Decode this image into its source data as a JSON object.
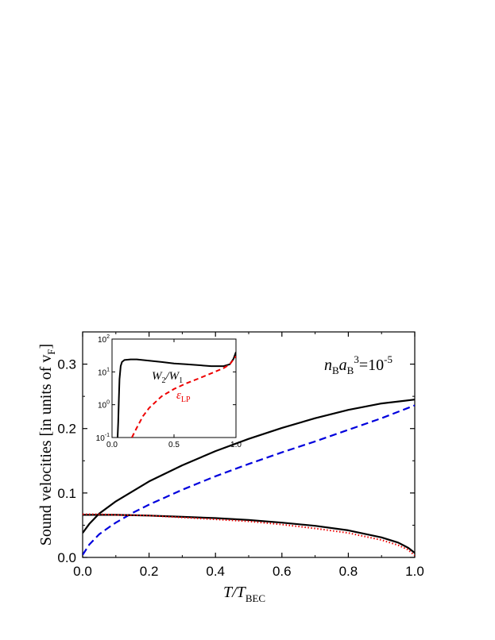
{
  "chart_data": [
    {
      "type": "line",
      "xlabel": "T/T",
      "xlabel_sub": "BEC",
      "ylabel": "Sound velocities [in units of v",
      "ylabel_sub": "F",
      "ylabel_end": "]",
      "xlim": [
        0,
        1
      ],
      "ylim": [
        0,
        0.35
      ],
      "xticks": [
        "0.0",
        "0.2",
        "0.4",
        "0.6",
        "0.8",
        "1.0"
      ],
      "yticks": [
        "0.0",
        "0.1",
        "0.2",
        "0.3"
      ],
      "annotation": {
        "n": "n",
        "n_sub": "B",
        "a": "a",
        "a_sub": "B",
        "exp": "3",
        "rhs": "=10",
        "rhs_exp": "-5"
      },
      "series": [
        {
          "style": "solid",
          "color": "#000000",
          "x": [
            0,
            0.02,
            0.05,
            0.1,
            0.2,
            0.3,
            0.4,
            0.5,
            0.6,
            0.7,
            0.8,
            0.9,
            1.0
          ],
          "y": [
            0.038,
            0.052,
            0.068,
            0.087,
            0.118,
            0.143,
            0.165,
            0.184,
            0.201,
            0.216,
            0.229,
            0.239,
            0.245
          ]
        },
        {
          "style": "dashed",
          "color": "#0000dd",
          "x": [
            0,
            0.02,
            0.05,
            0.08,
            0.1,
            0.15,
            0.2,
            0.3,
            0.4,
            0.5,
            0.6,
            0.7,
            0.8,
            0.9,
            1.0
          ],
          "y": [
            0.004,
            0.02,
            0.036,
            0.047,
            0.054,
            0.069,
            0.082,
            0.105,
            0.126,
            0.145,
            0.163,
            0.18,
            0.198,
            0.216,
            0.236
          ]
        },
        {
          "style": "solid",
          "color": "#000000",
          "x": [
            0,
            0.03,
            0.05,
            0.08,
            0.1,
            0.2,
            0.3,
            0.4,
            0.5,
            0.6,
            0.7,
            0.8,
            0.9,
            0.95,
            0.98,
            1.0
          ],
          "y": [
            0.066,
            0.066,
            0.066,
            0.066,
            0.066,
            0.065,
            0.063,
            0.061,
            0.058,
            0.054,
            0.049,
            0.042,
            0.031,
            0.023,
            0.015,
            0.007
          ]
        },
        {
          "style": "dotted",
          "color": "#ee0000",
          "x": [
            0,
            0.05,
            0.1,
            0.2,
            0.3,
            0.4,
            0.5,
            0.6,
            0.7,
            0.8,
            0.9,
            0.95,
            0.98,
            1.0
          ],
          "y": [
            0.067,
            0.067,
            0.066,
            0.065,
            0.062,
            0.059,
            0.056,
            0.051,
            0.045,
            0.038,
            0.027,
            0.019,
            0.012,
            0.003
          ]
        }
      ]
    },
    {
      "type": "line",
      "scale_y": "log",
      "xlim": [
        0,
        1
      ],
      "ylim": [
        0.1,
        100
      ],
      "xticks": [
        "0.0",
        "0.5",
        "1.0"
      ],
      "yticks": [
        {
          "base": "10",
          "exp": "-1"
        },
        {
          "base": "10",
          "exp": "0"
        },
        {
          "base": "10",
          "exp": "1"
        },
        {
          "base": "10",
          "exp": "2"
        }
      ],
      "labels": {
        "w_ratio": {
          "w2": "W",
          "w2_sub": "2",
          "slash": "/",
          "w1": "W",
          "w1_sub": "1"
        },
        "eps": {
          "sym": "ε",
          "sub": "LP"
        }
      },
      "series": [
        {
          "name": "W2/W1",
          "style": "solid",
          "color": "#000000",
          "x": [
            0.045,
            0.05,
            0.055,
            0.06,
            0.07,
            0.08,
            0.1,
            0.15,
            0.2,
            0.3,
            0.4,
            0.5,
            0.6,
            0.7,
            0.8,
            0.9,
            0.95,
            0.98,
            1.0
          ],
          "y": [
            0.1,
            0.3,
            1.5,
            6,
            15,
            20,
            23,
            24,
            24,
            22,
            20,
            18,
            17,
            16,
            15,
            15,
            17,
            25,
            40
          ]
        },
        {
          "name": "εLP",
          "style": "dashed",
          "color": "#ee0000",
          "x": [
            0.16,
            0.2,
            0.25,
            0.3,
            0.4,
            0.5,
            0.6,
            0.7,
            0.8,
            0.9,
            0.95,
            1.0
          ],
          "y": [
            0.1,
            0.2,
            0.45,
            0.8,
            1.8,
            3,
            4.5,
            6.3,
            9,
            13,
            17,
            30
          ]
        }
      ]
    }
  ]
}
